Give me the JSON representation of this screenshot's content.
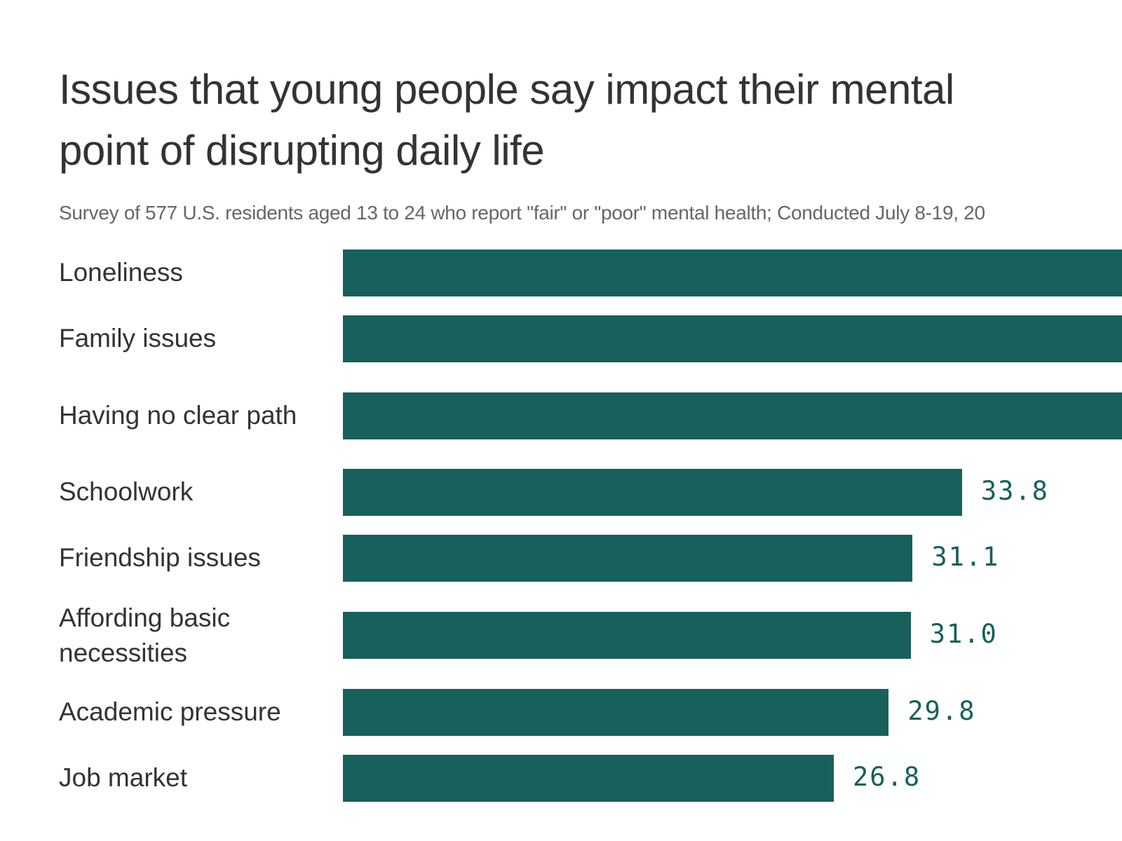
{
  "chart_data": {
    "type": "bar",
    "orientation": "horizontal",
    "title_lines": [
      "Issues that young people say impact their mental",
      "point of disrupting daily life"
    ],
    "subtitle": "Survey of 577 U.S. residents aged 13 to 24 who report \"fair\" or \"poor\" mental health; Conducted July 8-19, 20",
    "categories": [
      "Loneliness",
      "Family issues",
      "Having no clear path",
      "Schoolwork",
      "Friendship issues",
      "Affording basic necessities",
      "Academic pressure",
      "Job market"
    ],
    "values": [
      null,
      null,
      null,
      33.8,
      31.1,
      31.0,
      29.8,
      26.8
    ],
    "value_labels": [
      "",
      "",
      "",
      "33.8",
      "31.1",
      "31.0",
      "29.8",
      "26.8"
    ],
    "bar_color": "#17605b",
    "label_color": "#17605b",
    "grid": false
  }
}
